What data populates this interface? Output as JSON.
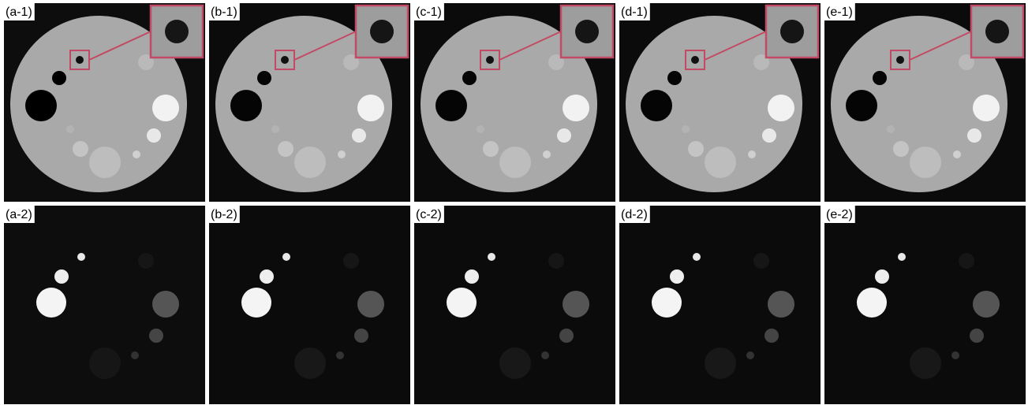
{
  "rows": [
    {
      "panels": [
        {
          "label": "(a-1)"
        },
        {
          "label": "(b-1)"
        },
        {
          "label": "(c-1)"
        },
        {
          "label": "(d-1)"
        },
        {
          "label": "(e-1)"
        }
      ]
    },
    {
      "panels": [
        {
          "label": "(a-2)"
        },
        {
          "label": "(b-2)"
        },
        {
          "label": "(c-2)"
        },
        {
          "label": "(d-2)"
        },
        {
          "label": "(e-2)"
        }
      ]
    }
  ]
}
